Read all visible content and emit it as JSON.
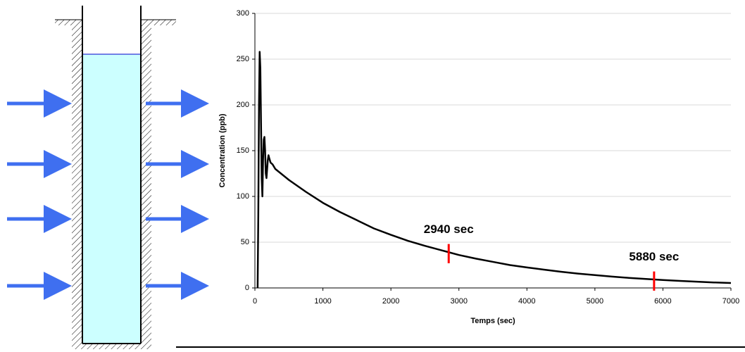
{
  "chart_data": {
    "type": "line",
    "x_label": "Temps (sec)",
    "y_label": "Concentration (ppb)",
    "x": [
      40,
      50,
      60,
      70,
      80,
      90,
      100,
      110,
      120,
      130,
      140,
      150,
      160,
      170,
      180,
      190,
      200,
      210,
      230,
      260,
      300,
      500,
      750,
      1000,
      1250,
      1500,
      1750,
      2000,
      2250,
      2500,
      2750,
      3000,
      3250,
      3500,
      3750,
      4000,
      4250,
      4500,
      4750,
      5000,
      5250,
      5500,
      5750,
      6000,
      6250,
      6500,
      6750,
      7000
    ],
    "series": [
      {
        "color": "#000000",
        "values": [
          0,
          80,
          200,
          258,
          240,
          180,
          120,
          100,
          140,
          162,
          165,
          150,
          125,
          120,
          130,
          140,
          145,
          142,
          137,
          135,
          130,
          118,
          105,
          93,
          83,
          74,
          65,
          58,
          51.5,
          46,
          41,
          36,
          32,
          28.5,
          25,
          22.4,
          20,
          17.7,
          15.7,
          14,
          12.4,
          11,
          9.8,
          8.7,
          7.7,
          6.8,
          6,
          5.4
        ]
      }
    ],
    "xlim": [
      0,
      7000
    ],
    "xticks": [
      0,
      1000,
      2000,
      3000,
      4000,
      5000,
      6000,
      7000
    ],
    "ylim": [
      0,
      300
    ],
    "yticks": [
      0,
      50,
      100,
      150,
      200,
      250,
      300
    ],
    "grid": true,
    "annotations": [
      {
        "text": "2940 sec",
        "x": 2850,
        "y_range": [
          27,
          48
        ]
      },
      {
        "text": "5880 sec",
        "x": 5870,
        "y_range": [
          -3,
          18
        ]
      }
    ]
  }
}
